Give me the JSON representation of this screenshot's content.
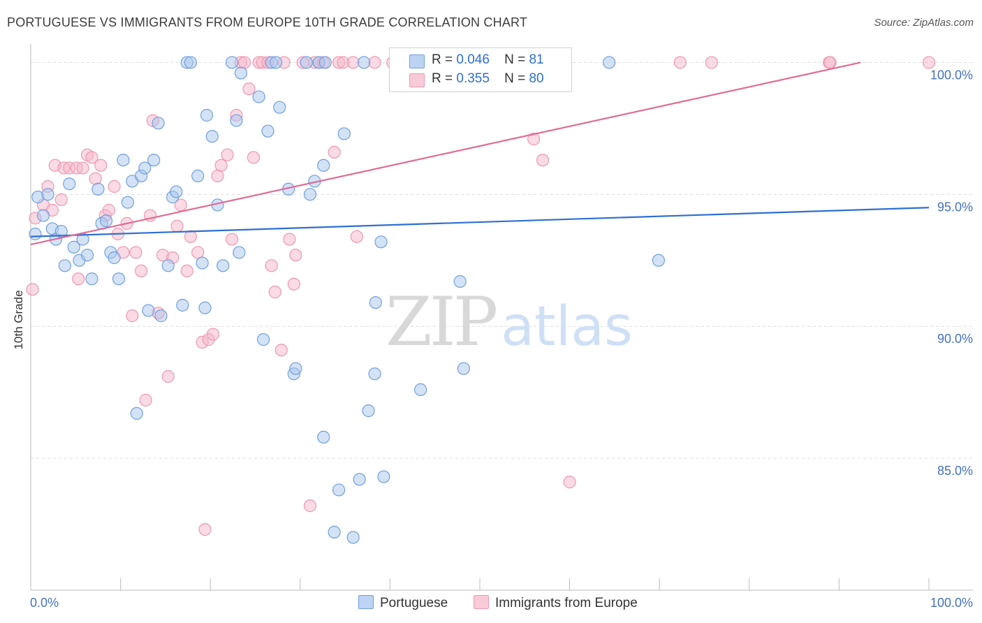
{
  "title": "PORTUGUESE VS IMMIGRANTS FROM EUROPE 10TH GRADE CORRELATION CHART",
  "source": "Source: ZipAtlas.com",
  "watermark": {
    "zip": "ZIP",
    "atlas": "atlas"
  },
  "legend": {
    "r_label": "R =",
    "n_label": "N =",
    "rows": [
      {
        "r": "0.046",
        "n": "81"
      },
      {
        "r": "0.355",
        "n": "80"
      }
    ]
  },
  "bottom_legend": [
    "Portuguese",
    "Immigrants from Europe"
  ],
  "colors": {
    "blue_fill": "#a9c6ee",
    "blue_stroke": "#6f9fe0",
    "blue_line": "#2d6fd1",
    "pink_fill": "#f6b6c9",
    "pink_stroke": "#ee97b1",
    "pink_line": "#e06b94",
    "grid": "#dcdcdc",
    "axis_text": "#4472c4"
  },
  "chart_data": {
    "type": "scatter",
    "title": "PORTUGUESE VS IMMIGRANTS FROM EUROPE 10TH GRADE CORRELATION CHART",
    "xlabel": "",
    "ylabel": "10th Grade",
    "xlim": [
      0,
      100
    ],
    "ylim": [
      80.0,
      100.7
    ],
    "x_tick_labels": [
      "0.0%",
      "100.0%"
    ],
    "y_ticks": [
      85,
      90,
      95,
      100
    ],
    "y_tick_labels": [
      "85.0%",
      "90.0%",
      "95.0%",
      "100.0%"
    ],
    "series": [
      {
        "name": "Portuguese",
        "r": 0.046,
        "n": 81,
        "trend": {
          "x": [
            0,
            100
          ],
          "y": [
            93.4,
            94.5
          ]
        },
        "points": [
          [
            0.5,
            93.5
          ],
          [
            0.8,
            94.9
          ],
          [
            1.4,
            94.2
          ],
          [
            1.9,
            95.0
          ],
          [
            2.4,
            93.7
          ],
          [
            2.8,
            93.3
          ],
          [
            3.4,
            93.6
          ],
          [
            3.8,
            92.3
          ],
          [
            4.3,
            95.4
          ],
          [
            4.8,
            93.0
          ],
          [
            5.4,
            92.5
          ],
          [
            5.8,
            93.3
          ],
          [
            6.3,
            92.7
          ],
          [
            6.8,
            91.8
          ],
          [
            7.5,
            95.2
          ],
          [
            7.9,
            93.9
          ],
          [
            8.4,
            94.0
          ],
          [
            8.9,
            92.8
          ],
          [
            9.3,
            92.6
          ],
          [
            9.8,
            91.8
          ],
          [
            10.3,
            96.3
          ],
          [
            10.8,
            94.7
          ],
          [
            11.3,
            95.5
          ],
          [
            11.8,
            86.7
          ],
          [
            12.3,
            95.7
          ],
          [
            12.7,
            96.0
          ],
          [
            13.1,
            90.6
          ],
          [
            13.7,
            96.3
          ],
          [
            14.2,
            97.7
          ],
          [
            14.5,
            90.4
          ],
          [
            15.3,
            92.3
          ],
          [
            15.8,
            94.9
          ],
          [
            16.2,
            95.1
          ],
          [
            16.9,
            90.8
          ],
          [
            17.4,
            100.0
          ],
          [
            17.8,
            100.0
          ],
          [
            18.6,
            95.7
          ],
          [
            19.1,
            92.4
          ],
          [
            19.4,
            90.7
          ],
          [
            19.6,
            98.0
          ],
          [
            20.2,
            97.2
          ],
          [
            20.8,
            94.6
          ],
          [
            21.4,
            92.3
          ],
          [
            22.4,
            100.0
          ],
          [
            22.9,
            97.8
          ],
          [
            23.2,
            92.8
          ],
          [
            23.4,
            99.6
          ],
          [
            25.4,
            98.7
          ],
          [
            25.9,
            89.5
          ],
          [
            26.4,
            97.4
          ],
          [
            26.8,
            100.0
          ],
          [
            27.3,
            100.0
          ],
          [
            27.7,
            98.3
          ],
          [
            28.7,
            95.2
          ],
          [
            29.3,
            88.2
          ],
          [
            29.5,
            88.4
          ],
          [
            30.7,
            100.0
          ],
          [
            31.1,
            95.0
          ],
          [
            31.6,
            95.5
          ],
          [
            32.1,
            100.0
          ],
          [
            32.6,
            96.1
          ],
          [
            32.6,
            85.8
          ],
          [
            32.8,
            100.0
          ],
          [
            33.8,
            82.2
          ],
          [
            34.3,
            83.8
          ],
          [
            34.9,
            97.3
          ],
          [
            35.9,
            82.0
          ],
          [
            36.6,
            84.2
          ],
          [
            37.1,
            100.0
          ],
          [
            37.6,
            86.8
          ],
          [
            38.3,
            88.2
          ],
          [
            38.4,
            90.9
          ],
          [
            39.0,
            93.2
          ],
          [
            39.3,
            84.3
          ],
          [
            40.9,
            100.0
          ],
          [
            43.4,
            87.6
          ],
          [
            45.0,
            100.0
          ],
          [
            47.8,
            91.7
          ],
          [
            48.2,
            88.4
          ],
          [
            64.4,
            100.0
          ],
          [
            69.9,
            92.5
          ]
        ]
      },
      {
        "name": "Immigrants from Europe",
        "r": 0.355,
        "n": 80,
        "trend": {
          "x": [
            0,
            92.4
          ],
          "y": [
            93.1,
            100.0
          ]
        },
        "points": [
          [
            0.2,
            91.4
          ],
          [
            0.5,
            94.1
          ],
          [
            1.4,
            94.6
          ],
          [
            1.9,
            95.3
          ],
          [
            2.4,
            94.4
          ],
          [
            2.7,
            96.1
          ],
          [
            3.4,
            94.8
          ],
          [
            3.7,
            96.0
          ],
          [
            4.3,
            96.0
          ],
          [
            5.1,
            96.0
          ],
          [
            5.3,
            91.8
          ],
          [
            5.8,
            96.0
          ],
          [
            6.3,
            96.5
          ],
          [
            6.8,
            96.4
          ],
          [
            7.2,
            95.6
          ],
          [
            7.8,
            96.1
          ],
          [
            8.3,
            94.2
          ],
          [
            8.7,
            94.4
          ],
          [
            9.3,
            95.3
          ],
          [
            9.7,
            93.5
          ],
          [
            10.3,
            92.8
          ],
          [
            10.7,
            93.9
          ],
          [
            11.3,
            90.4
          ],
          [
            11.7,
            92.8
          ],
          [
            12.3,
            92.1
          ],
          [
            12.8,
            87.2
          ],
          [
            13.3,
            94.2
          ],
          [
            13.6,
            97.8
          ],
          [
            14.2,
            90.5
          ],
          [
            14.7,
            92.7
          ],
          [
            15.3,
            88.1
          ],
          [
            15.8,
            92.6
          ],
          [
            16.3,
            93.8
          ],
          [
            16.7,
            94.6
          ],
          [
            17.4,
            92.1
          ],
          [
            17.8,
            93.4
          ],
          [
            18.6,
            92.8
          ],
          [
            19.1,
            89.4
          ],
          [
            19.4,
            82.3
          ],
          [
            19.8,
            89.5
          ],
          [
            20.3,
            89.7
          ],
          [
            20.8,
            95.7
          ],
          [
            21.2,
            96.1
          ],
          [
            21.9,
            96.5
          ],
          [
            22.4,
            93.3
          ],
          [
            22.9,
            98.0
          ],
          [
            23.4,
            100.0
          ],
          [
            23.8,
            100.0
          ],
          [
            24.3,
            99.0
          ],
          [
            24.8,
            96.4
          ],
          [
            25.4,
            100.0
          ],
          [
            25.8,
            100.0
          ],
          [
            26.4,
            100.0
          ],
          [
            26.8,
            92.3
          ],
          [
            27.2,
            91.3
          ],
          [
            27.9,
            89.1
          ],
          [
            28.2,
            100.0
          ],
          [
            28.8,
            93.3
          ],
          [
            29.3,
            91.6
          ],
          [
            29.5,
            92.7
          ],
          [
            30.3,
            100.0
          ],
          [
            31.1,
            83.2
          ],
          [
            31.6,
            100.0
          ],
          [
            32.1,
            100.0
          ],
          [
            32.6,
            100.0
          ],
          [
            33.8,
            96.6
          ],
          [
            34.3,
            100.0
          ],
          [
            34.8,
            100.0
          ],
          [
            35.9,
            100.0
          ],
          [
            36.3,
            93.4
          ],
          [
            38.3,
            100.0
          ],
          [
            40.3,
            100.0
          ],
          [
            56.0,
            97.1
          ],
          [
            57.0,
            96.3
          ],
          [
            60.0,
            84.1
          ],
          [
            72.3,
            100.0
          ],
          [
            75.8,
            100.0
          ],
          [
            88.9,
            100.0
          ],
          [
            89.0,
            100.0
          ],
          [
            100.0,
            100.0
          ]
        ]
      }
    ]
  }
}
